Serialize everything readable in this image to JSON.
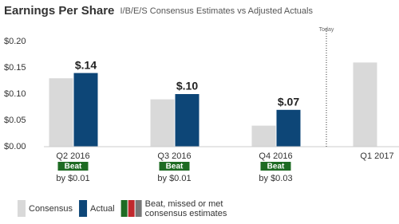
{
  "chart_data": {
    "type": "bar",
    "title": "Earnings Per Share",
    "subtitle": "I/B/E/S Consensus Estimates vs Adjusted Actuals",
    "categories": [
      "Q2 2016",
      "Q3 2016",
      "Q4 2016",
      "Q1 2017"
    ],
    "series": [
      {
        "name": "Consensus",
        "color": "#d9d9d9",
        "values": [
          0.13,
          0.09,
          0.04,
          0.16
        ]
      },
      {
        "name": "Actual",
        "color": "#0d4677",
        "values": [
          0.14,
          0.1,
          0.07,
          null
        ],
        "value_labels": [
          "$.14",
          "$.10",
          "$.07",
          null
        ]
      }
    ],
    "surprise_labels": [
      "Beat",
      "Beat",
      "Beat",
      null
    ],
    "surprise_details": [
      "by $0.01",
      "by $0.01",
      "by $0.03",
      null
    ],
    "surprise_color": "#1e6b23",
    "today": "Today",
    "legend_note": [
      "Beat, missed or met",
      "consensus estimates"
    ],
    "legend_note_colors": [
      "#1e6b23",
      "#c0282d",
      "#777777"
    ],
    "ylim": [
      0,
      0.2
    ],
    "yticks": [
      {
        "value": 0,
        "label": "$0.00"
      },
      {
        "value": 0.05,
        "label": "$0.05"
      },
      {
        "value": 0.1,
        "label": "$0.10"
      },
      {
        "value": 0.15,
        "label": "$0.15"
      },
      {
        "value": 0.2,
        "label": "$0.20"
      }
    ],
    "grid": false
  }
}
